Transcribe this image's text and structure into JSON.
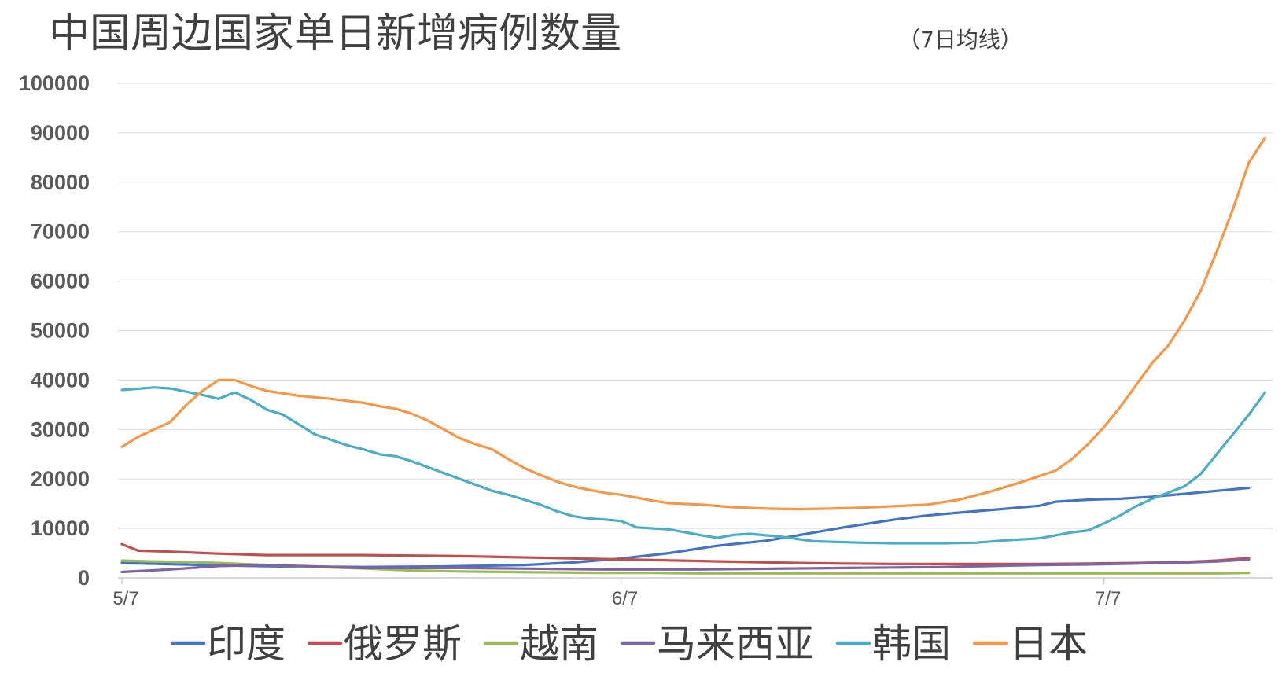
{
  "chart_data": {
    "type": "line",
    "title": "中国周边国家单日新增病例数量",
    "subtitle": "（7日均线）",
    "xlabel": "",
    "ylabel": "",
    "ylim": [
      0,
      100000
    ],
    "y_ticks": [
      "0",
      "10000",
      "20000",
      "30000",
      "40000",
      "50000",
      "60000",
      "70000",
      "80000",
      "90000",
      "100000"
    ],
    "y_tick_values": [
      0,
      10000,
      20000,
      30000,
      40000,
      50000,
      60000,
      70000,
      80000,
      90000,
      100000
    ],
    "x_range_days": [
      0,
      70
    ],
    "x_ticks": [
      {
        "label": "5/7",
        "day": 0
      },
      {
        "label": "6/7",
        "day": 31
      },
      {
        "label": "7/7",
        "day": 61
      }
    ],
    "grid": true,
    "legend_position": "bottom",
    "series": [
      {
        "name": "印度",
        "color": "#4472C4",
        "points": [
          [
            0,
            3000
          ],
          [
            5,
            2600
          ],
          [
            10,
            2300
          ],
          [
            15,
            2200
          ],
          [
            20,
            2300
          ],
          [
            25,
            2600
          ],
          [
            28,
            3100
          ],
          [
            31,
            3900
          ],
          [
            34,
            5000
          ],
          [
            37,
            6500
          ],
          [
            40,
            7500
          ],
          [
            42,
            8600
          ],
          [
            45,
            10300
          ],
          [
            48,
            11800
          ],
          [
            50,
            12600
          ],
          [
            52,
            13200
          ],
          [
            55,
            14000
          ],
          [
            57,
            14600
          ],
          [
            58,
            15400
          ],
          [
            60,
            15800
          ],
          [
            62,
            16000
          ],
          [
            64,
            16400
          ],
          [
            66,
            17000
          ],
          [
            68,
            17600
          ],
          [
            70,
            18200
          ]
        ]
      },
      {
        "name": "俄罗斯",
        "color": "#C0504D",
        "points": [
          [
            0,
            6800
          ],
          [
            1,
            5500
          ],
          [
            3,
            5300
          ],
          [
            6,
            4900
          ],
          [
            9,
            4600
          ],
          [
            12,
            4600
          ],
          [
            15,
            4600
          ],
          [
            18,
            4500
          ],
          [
            21,
            4400
          ],
          [
            24,
            4200
          ],
          [
            27,
            4000
          ],
          [
            30,
            3800
          ],
          [
            33,
            3600
          ],
          [
            36,
            3400
          ],
          [
            39,
            3200
          ],
          [
            42,
            3000
          ],
          [
            45,
            2900
          ],
          [
            48,
            2800
          ],
          [
            51,
            2800
          ],
          [
            54,
            2800
          ],
          [
            57,
            2800
          ],
          [
            60,
            2900
          ],
          [
            63,
            3000
          ],
          [
            66,
            3200
          ],
          [
            68,
            3500
          ],
          [
            70,
            4000
          ]
        ]
      },
      {
        "name": "越南",
        "color": "#9BBB59",
        "points": [
          [
            0,
            3500
          ],
          [
            2,
            3300
          ],
          [
            4,
            3200
          ],
          [
            6,
            3000
          ],
          [
            9,
            2600
          ],
          [
            12,
            2200
          ],
          [
            15,
            1900
          ],
          [
            18,
            1500
          ],
          [
            21,
            1300
          ],
          [
            24,
            1200
          ],
          [
            27,
            1100
          ],
          [
            30,
            1000
          ],
          [
            33,
            1000
          ],
          [
            36,
            900
          ],
          [
            39,
            900
          ],
          [
            42,
            900
          ],
          [
            45,
            900
          ],
          [
            48,
            900
          ],
          [
            51,
            900
          ],
          [
            54,
            900
          ],
          [
            57,
            900
          ],
          [
            60,
            900
          ],
          [
            63,
            900
          ],
          [
            66,
            900
          ],
          [
            68,
            900
          ],
          [
            70,
            1000
          ]
        ]
      },
      {
        "name": "马来西亚",
        "color": "#8064A2",
        "points": [
          [
            0,
            1200
          ],
          [
            3,
            1700
          ],
          [
            6,
            2400
          ],
          [
            9,
            2600
          ],
          [
            12,
            2300
          ],
          [
            15,
            2000
          ],
          [
            18,
            2000
          ],
          [
            21,
            2000
          ],
          [
            24,
            1900
          ],
          [
            27,
            1800
          ],
          [
            30,
            1700
          ],
          [
            33,
            1700
          ],
          [
            36,
            1700
          ],
          [
            39,
            1800
          ],
          [
            42,
            1900
          ],
          [
            45,
            2000
          ],
          [
            48,
            2100
          ],
          [
            51,
            2200
          ],
          [
            54,
            2400
          ],
          [
            57,
            2600
          ],
          [
            60,
            2700
          ],
          [
            63,
            2900
          ],
          [
            66,
            3100
          ],
          [
            68,
            3300
          ],
          [
            70,
            3700
          ]
        ]
      },
      {
        "name": "韩国",
        "color": "#4BACC6",
        "points": [
          [
            0,
            38000
          ],
          [
            2,
            38500
          ],
          [
            3,
            38300
          ],
          [
            5,
            37000
          ],
          [
            6,
            36200
          ],
          [
            7,
            37500
          ],
          [
            8,
            36000
          ],
          [
            9,
            34000
          ],
          [
            10,
            33000
          ],
          [
            11,
            31000
          ],
          [
            12,
            29000
          ],
          [
            14,
            26800
          ],
          [
            15,
            26000
          ],
          [
            16,
            25000
          ],
          [
            17,
            24600
          ],
          [
            18,
            23600
          ],
          [
            20,
            21200
          ],
          [
            22,
            18800
          ],
          [
            23,
            17600
          ],
          [
            24,
            16800
          ],
          [
            25,
            15800
          ],
          [
            26,
            14800
          ],
          [
            27,
            13500
          ],
          [
            28,
            12500
          ],
          [
            29,
            12000
          ],
          [
            30,
            11800
          ],
          [
            31,
            11500
          ],
          [
            32,
            10200
          ],
          [
            34,
            9800
          ],
          [
            35,
            9200
          ],
          [
            36,
            8600
          ],
          [
            37,
            8100
          ],
          [
            38,
            8700
          ],
          [
            39,
            8900
          ],
          [
            41,
            8300
          ],
          [
            43,
            7400
          ],
          [
            46,
            7100
          ],
          [
            48,
            7000
          ],
          [
            51,
            7000
          ],
          [
            53,
            7100
          ],
          [
            55,
            7600
          ],
          [
            57,
            8000
          ],
          [
            59,
            9200
          ],
          [
            60,
            9600
          ],
          [
            61,
            11000
          ],
          [
            62,
            12600
          ],
          [
            63,
            14500
          ],
          [
            64,
            16000
          ],
          [
            66,
            18500
          ],
          [
            67,
            21000
          ],
          [
            68,
            25000
          ],
          [
            69,
            29000
          ],
          [
            70,
            33000
          ],
          [
            71,
            37500
          ]
        ]
      },
      {
        "name": "日本",
        "color": "#F79646",
        "points": [
          [
            0,
            26500
          ],
          [
            1,
            28500
          ],
          [
            2,
            30000
          ],
          [
            3,
            31500
          ],
          [
            4,
            35000
          ],
          [
            5,
            37800
          ],
          [
            6,
            40000
          ],
          [
            7,
            40000
          ],
          [
            8,
            38800
          ],
          [
            9,
            37800
          ],
          [
            11,
            36800
          ],
          [
            13,
            36200
          ],
          [
            15,
            35400
          ],
          [
            16,
            34700
          ],
          [
            17,
            34200
          ],
          [
            18,
            33200
          ],
          [
            19,
            31800
          ],
          [
            20,
            30000
          ],
          [
            21,
            28200
          ],
          [
            22,
            27000
          ],
          [
            23,
            26000
          ],
          [
            24,
            24000
          ],
          [
            25,
            22200
          ],
          [
            26,
            20800
          ],
          [
            27,
            19500
          ],
          [
            28,
            18500
          ],
          [
            29,
            17800
          ],
          [
            30,
            17200
          ],
          [
            31,
            16800
          ],
          [
            32,
            16200
          ],
          [
            33,
            15600
          ],
          [
            34,
            15100
          ],
          [
            36,
            14800
          ],
          [
            38,
            14300
          ],
          [
            40,
            14000
          ],
          [
            42,
            13900
          ],
          [
            44,
            14000
          ],
          [
            46,
            14200
          ],
          [
            48,
            14500
          ],
          [
            50,
            14800
          ],
          [
            52,
            15800
          ],
          [
            54,
            17500
          ],
          [
            56,
            19500
          ],
          [
            58,
            21700
          ],
          [
            59,
            24000
          ],
          [
            60,
            27000
          ],
          [
            61,
            30500
          ],
          [
            62,
            34500
          ],
          [
            63,
            39000
          ],
          [
            64,
            43500
          ],
          [
            65,
            47000
          ],
          [
            66,
            52000
          ],
          [
            67,
            58000
          ],
          [
            68,
            66000
          ],
          [
            69,
            74500
          ],
          [
            70,
            84000
          ],
          [
            71,
            89000
          ]
        ]
      }
    ]
  }
}
